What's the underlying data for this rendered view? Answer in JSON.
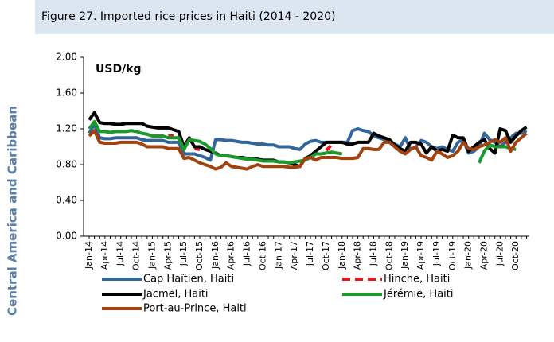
{
  "section": "Central America and Caribbean",
  "chart_data": {
    "type": "line",
    "title": "Figure 27. Imported rice prices in Haiti (2014 - 2020)",
    "ylabel": "USD/kg",
    "categories": [
      "Jan-14",
      null,
      null,
      "Apr-14",
      null,
      null,
      "Jul-14",
      null,
      null,
      "Oct-14",
      null,
      null,
      "Jan-15",
      null,
      null,
      "Apr-15",
      null,
      null,
      "Jul-15",
      null,
      null,
      "Oct-15",
      null,
      null,
      "Jan-16",
      null,
      null,
      "Apr-16",
      null,
      null,
      "Jul-16",
      null,
      null,
      "Oct-16",
      null,
      null,
      "Jan-17",
      null,
      null,
      "Apr-17",
      null,
      null,
      "Jul-17",
      null,
      null,
      "Oct-17",
      null,
      null,
      "Jan-18",
      null,
      null,
      "Apr-18",
      null,
      null,
      "Jul-18",
      null,
      null,
      "Oct-18",
      null,
      null,
      "Jan-19",
      null,
      null,
      "Apr-19",
      null,
      null,
      "Jul-19",
      null,
      null,
      "Oct-19",
      null,
      null,
      "Jan-20",
      null,
      null,
      "Apr-20",
      null,
      null,
      "Jul-20",
      null,
      null,
      "Oct-20",
      null,
      null
    ],
    "ylim": [
      0,
      2
    ],
    "yticks": [
      {
        "value": 0,
        "label": "0.00"
      },
      {
        "value": 0.4,
        "label": "0.40"
      },
      {
        "value": 0.8,
        "label": "0.80"
      },
      {
        "value": 1.2,
        "label": "1.20"
      },
      {
        "value": 1.6,
        "label": "1.60"
      },
      {
        "value": 2,
        "label": "2.00"
      }
    ],
    "grid": false,
    "series": [
      {
        "name": "Cap Haïtien, Haiti",
        "color": "#31659c",
        "values": [
          1.15,
          1.25,
          1.1,
          1.09,
          1.09,
          1.1,
          1.1,
          1.1,
          1.1,
          1.1,
          1.08,
          1.07,
          1.07,
          1.07,
          1.07,
          1.05,
          1.05,
          1.05,
          0.92,
          0.92,
          0.92,
          0.9,
          0.88,
          0.85,
          1.08,
          1.08,
          1.07,
          1.07,
          1.06,
          1.05,
          1.05,
          1.04,
          1.03,
          1.03,
          1.02,
          1.02,
          1.0,
          1.0,
          1.0,
          0.98,
          0.97,
          1.03,
          1.06,
          1.07,
          1.05,
          1.05,
          1.05,
          1.05,
          1.05,
          1.05,
          1.18,
          1.2,
          1.18,
          1.17,
          1.12,
          1.1,
          1.08,
          1.05,
          1.03,
          1.0,
          1.1,
          0.97,
          1.0,
          1.07,
          1.05,
          1.0,
          0.98,
          1.0,
          0.97,
          0.95,
          1.05,
          1.08,
          0.93,
          0.95,
          1.0,
          1.15,
          1.08,
          1.05,
          1.0,
          1.05,
          1.1,
          1.15,
          1.15,
          1.18
        ]
      },
      {
        "name": "Hinche, Haiti",
        "color": "#e8161c",
        "dashed": true,
        "values": [
          null,
          null,
          null,
          null,
          null,
          null,
          null,
          null,
          null,
          null,
          null,
          null,
          null,
          null,
          null,
          1.12,
          1.12,
          null,
          null,
          null,
          0.98,
          0.97,
          null,
          null,
          null,
          null,
          null,
          null,
          null,
          null,
          null,
          null,
          null,
          null,
          null,
          null,
          null,
          null,
          null,
          null,
          null,
          null,
          null,
          null,
          null,
          0.96,
          1.02,
          null,
          null,
          null,
          null,
          null,
          null,
          null,
          null,
          null,
          null,
          null,
          null,
          null,
          null,
          null,
          null,
          null,
          null,
          null,
          null,
          null,
          null,
          null,
          null,
          null,
          null,
          null,
          null,
          null,
          null,
          null,
          null,
          null,
          null,
          null,
          null,
          null
        ]
      },
      {
        "name": "Jacmel, Haiti",
        "color": "#000000",
        "values": [
          1.3,
          1.38,
          1.27,
          1.26,
          1.26,
          1.25,
          1.25,
          1.26,
          1.26,
          1.26,
          1.26,
          1.23,
          1.22,
          1.21,
          1.21,
          1.21,
          1.19,
          1.17,
          1.0,
          1.1,
          1.0,
          1.0,
          0.97,
          0.95,
          0.93,
          0.9,
          0.9,
          0.89,
          0.88,
          0.88,
          0.87,
          0.87,
          0.86,
          0.85,
          0.85,
          0.85,
          0.83,
          0.83,
          0.82,
          0.8,
          0.78,
          0.87,
          0.9,
          0.95,
          1.0,
          1.05,
          1.05,
          1.05,
          1.05,
          1.03,
          1.03,
          1.05,
          1.05,
          1.05,
          1.15,
          1.12,
          1.1,
          1.08,
          1.02,
          0.98,
          0.95,
          1.05,
          1.05,
          1.03,
          0.93,
          1.0,
          0.95,
          0.97,
          0.95,
          1.13,
          1.1,
          1.1,
          0.95,
          1.0,
          1.05,
          1.08,
          0.98,
          0.93,
          1.2,
          1.18,
          1.05,
          1.12,
          1.18,
          1.22
        ]
      },
      {
        "name": "Jérémie, Haiti",
        "color": "#1b9a2b",
        "values": [
          1.2,
          1.28,
          1.17,
          1.17,
          1.16,
          1.17,
          1.17,
          1.17,
          1.18,
          1.17,
          1.15,
          1.14,
          1.12,
          1.12,
          1.12,
          1.1,
          1.1,
          1.1,
          0.97,
          1.08,
          1.07,
          1.06,
          1.03,
          0.98,
          0.92,
          0.9,
          0.9,
          0.89,
          0.88,
          0.87,
          0.86,
          0.86,
          0.85,
          0.84,
          0.84,
          0.84,
          0.83,
          0.83,
          0.82,
          0.83,
          0.84,
          0.85,
          0.88,
          0.92,
          0.92,
          0.93,
          0.94,
          0.93,
          0.92,
          null,
          null,
          null,
          null,
          null,
          null,
          null,
          null,
          null,
          null,
          null,
          null,
          null,
          null,
          null,
          null,
          null,
          null,
          null,
          null,
          null,
          null,
          null,
          null,
          null,
          0.82,
          0.95,
          1.02,
          1.0,
          1.0,
          1.0,
          0.98,
          0.97,
          null,
          null
        ]
      },
      {
        "name": "Port-au-Prince, Haiti",
        "color": "#a2430f",
        "values": [
          1.12,
          1.18,
          1.05,
          1.04,
          1.04,
          1.04,
          1.05,
          1.05,
          1.05,
          1.05,
          1.03,
          1.0,
          1.0,
          1.0,
          1.0,
          0.98,
          0.98,
          0.98,
          0.87,
          0.88,
          0.85,
          0.82,
          0.8,
          0.78,
          0.75,
          0.77,
          0.82,
          0.78,
          0.77,
          0.76,
          0.75,
          0.78,
          0.8,
          0.78,
          0.78,
          0.78,
          0.78,
          0.78,
          0.77,
          0.77,
          0.78,
          0.87,
          0.88,
          0.85,
          0.88,
          0.88,
          0.88,
          0.88,
          0.87,
          0.87,
          0.87,
          0.88,
          0.98,
          0.98,
          0.97,
          0.97,
          1.05,
          1.05,
          1.0,
          0.95,
          0.92,
          0.97,
          1.0,
          0.9,
          0.88,
          0.85,
          0.95,
          0.92,
          0.88,
          0.9,
          0.95,
          1.05,
          0.98,
          0.97,
          1.0,
          1.02,
          1.05,
          1.08,
          1.05,
          1.1,
          0.95,
          1.05,
          1.1,
          1.15
        ]
      }
    ]
  }
}
